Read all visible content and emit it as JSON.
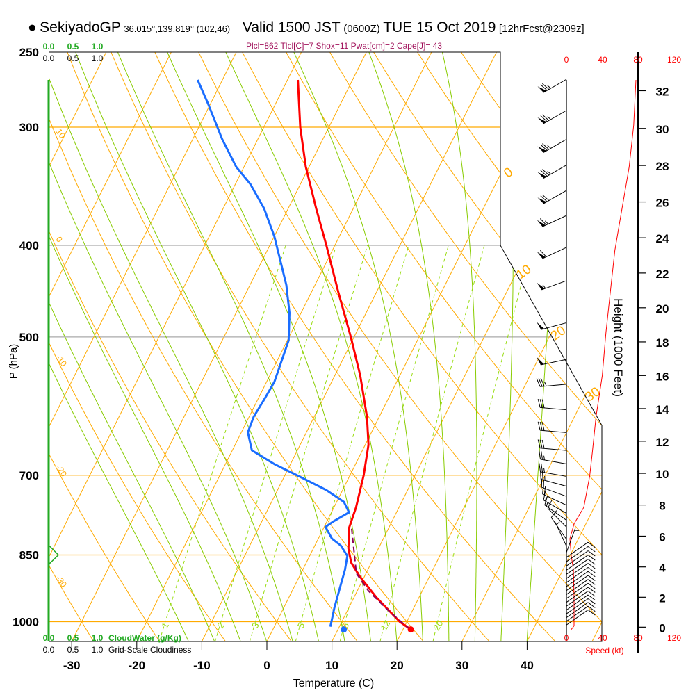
{
  "header": {
    "bullet": "●",
    "station": "SekiyadoGP",
    "coords": "36.015°,139.819° (102,46)",
    "valid": "Valid 1500 JST",
    "utc": "(0600Z)",
    "date": "TUE 15 Oct 2019",
    "forecast": "[12hrFcst@2309z]"
  },
  "chart_data": {
    "type": "line",
    "title": "Skew-T sounding",
    "indices": "Plcl=862 Tlcl[C]=7 Shox=11 Pwat[cm]=2 Cape[J]= 43",
    "xlabel": "Temperature (C)",
    "ylabel": "P (hPa)",
    "pressure_ticks": [
      "250",
      "300",
      "400",
      "500",
      "700",
      "850",
      "1000"
    ],
    "temperature_ticks": [
      "-30",
      "-20",
      "-10",
      "0",
      "10",
      "20",
      "30",
      "40"
    ],
    "xlim": [
      -34,
      48
    ],
    "ylim": [
      1050,
      250
    ],
    "height_axis": {
      "label": "Height (1000 Feet)",
      "ticks": [
        "0",
        "2",
        "4",
        "6",
        "8",
        "10",
        "12",
        "14",
        "16",
        "18",
        "20",
        "22",
        "24",
        "26",
        "28",
        "30",
        "32"
      ]
    },
    "speed_axis": {
      "label": "Speed (kt)",
      "ticks": [
        "0",
        "40",
        "80",
        "120"
      ]
    },
    "cloud_axes": {
      "ticks": [
        "0.0",
        "0.5",
        "1.0"
      ],
      "cloud_water_label": "CloudWater (g/Kg)",
      "cloudiness_label": "Grid-Scale Cloudiness"
    },
    "cloud_water_profile": [
      {
        "p": 830,
        "v": 0.0
      },
      {
        "p": 850,
        "v": 0.2
      },
      {
        "p": 870,
        "v": 0.0
      }
    ],
    "mixing_ratio_labels": [
      "1",
      "2",
      "3",
      "5",
      "8",
      "12",
      "20"
    ],
    "dry_adiabat_labels": [
      "10",
      "0",
      "-10",
      "-20",
      "-30"
    ],
    "isotherm_labels": [
      "0",
      "10",
      "20",
      "30"
    ],
    "colors": {
      "temperature": "#ff0000",
      "dewpoint": "#1a6dff",
      "parcel": "#8b005a",
      "isotherm": "#ffaa00",
      "moist": "#88cc00",
      "mixing": "#99dd11",
      "cloud": "#22aa22",
      "speed": "#ff0000"
    },
    "series": [
      {
        "name": "temperature",
        "points": [
          [
            267.4,
            -38.4
          ],
          [
            300,
            -34.4
          ],
          [
            330.4,
            -30.5
          ],
          [
            365.7,
            -25.7
          ],
          [
            400,
            -21.3
          ],
          [
            448,
            -15.9
          ],
          [
            500,
            -10.5
          ],
          [
            549,
            -6.1
          ],
          [
            607,
            -1.9
          ],
          [
            650,
            0.5
          ],
          [
            700,
            2.1
          ],
          [
            757,
            3.4
          ],
          [
            796,
            3.9
          ],
          [
            837,
            5.4
          ],
          [
            866,
            6.9
          ],
          [
            896,
            9.3
          ],
          [
            943,
            13.5
          ],
          [
            1000,
            18.9
          ],
          [
            1019,
            21.2
          ]
        ]
      },
      {
        "name": "dewpoint",
        "points": [
          [
            267.4,
            -53.8
          ],
          [
            283.7,
            -50.3
          ],
          [
            308.8,
            -45.5
          ],
          [
            330.4,
            -41.2
          ],
          [
            344.6,
            -37.7
          ],
          [
            365.7,
            -33.7
          ],
          [
            391.3,
            -30.0
          ],
          [
            418.7,
            -26.8
          ],
          [
            440.6,
            -24.4
          ],
          [
            471.3,
            -21.8
          ],
          [
            504.2,
            -19.8
          ],
          [
            530.3,
            -19.3
          ],
          [
            557.7,
            -18.8
          ],
          [
            581.6,
            -19.0
          ],
          [
            607,
            -19.3
          ],
          [
            630.6,
            -19.0
          ],
          [
            658.9,
            -17.0
          ],
          [
            681.7,
            -12.4
          ],
          [
            701.6,
            -7.8
          ],
          [
            725.8,
            -2.5
          ],
          [
            746.9,
            1.1
          ],
          [
            766.2,
            2.7
          ],
          [
            783.3,
            1.0
          ],
          [
            793.9,
            0.2
          ],
          [
            816.9,
            2.1
          ],
          [
            830.8,
            4.0
          ],
          [
            852,
            5.8
          ],
          [
            881.5,
            6.5
          ],
          [
            927.4,
            7.2
          ],
          [
            967.5,
            7.8
          ],
          [
            1000,
            8.4
          ],
          [
            1012,
            8.6
          ]
        ]
      },
      {
        "name": "parcel",
        "points": [
          [
            1019,
            21.1
          ],
          [
            975.3,
            16.5
          ],
          [
            927.4,
            11.7
          ],
          [
            888.7,
            8.5
          ],
          [
            852,
            6.9
          ],
          [
            796,
            4.3
          ]
        ]
      }
    ],
    "surface": {
      "p": 1019,
      "temperature": 21.2,
      "dewpoint": 10.9
    },
    "wind_speed_profile": [
      [
        267.4,
        77.5
      ],
      [
        298.5,
        75
      ],
      [
        330.4,
        70
      ],
      [
        365.7,
        62
      ],
      [
        404.9,
        54
      ],
      [
        448,
        49
      ],
      [
        495,
        44
      ],
      [
        549,
        40
      ],
      [
        607,
        33
      ],
      [
        661,
        29
      ],
      [
        701.6,
        26
      ],
      [
        757,
        19.4
      ],
      [
        788,
        8.5
      ],
      [
        817,
        3.9
      ],
      [
        852,
        5.4
      ],
      [
        881.5,
        7.8
      ],
      [
        943,
        8.5
      ],
      [
        1010,
        8.5
      ],
      [
        1019,
        5.4
      ]
    ],
    "wind_barbs": [
      [
        267,
        240,
        75
      ],
      [
        288,
        240,
        75
      ],
      [
        309,
        240,
        75
      ],
      [
        329,
        240,
        75
      ],
      [
        350,
        240,
        70
      ],
      [
        372,
        245,
        65
      ],
      [
        402,
        245,
        60
      ],
      [
        436,
        250,
        55
      ],
      [
        483,
        255,
        50
      ],
      [
        528,
        258,
        50
      ],
      [
        561,
        265,
        35
      ],
      [
        597,
        275,
        30
      ],
      [
        631,
        275,
        30
      ],
      [
        659,
        275,
        30
      ],
      [
        681,
        280,
        25
      ],
      [
        702,
        280,
        25
      ],
      [
        719,
        285,
        25
      ],
      [
        737,
        290,
        20
      ],
      [
        753,
        295,
        20
      ],
      [
        768,
        300,
        15
      ],
      [
        781,
        305,
        15
      ],
      [
        794,
        315,
        10
      ],
      [
        818,
        325,
        10
      ],
      [
        832,
        335,
        5
      ],
      [
        845,
        20,
        5
      ],
      [
        855,
        55,
        10
      ],
      [
        864,
        55,
        10
      ],
      [
        873,
        55,
        10
      ],
      [
        882,
        55,
        10
      ],
      [
        891,
        55,
        10
      ],
      [
        900,
        55,
        10
      ],
      [
        909,
        55,
        10
      ],
      [
        918,
        55,
        10
      ],
      [
        927,
        55,
        10
      ],
      [
        936,
        55,
        10
      ],
      [
        945,
        55,
        10
      ],
      [
        954,
        55,
        10
      ],
      [
        963,
        55,
        10
      ],
      [
        972,
        55,
        10
      ],
      [
        981,
        55,
        10
      ],
      [
        990,
        55,
        10
      ],
      [
        999,
        55,
        10
      ],
      [
        1008,
        55,
        10
      ]
    ]
  }
}
